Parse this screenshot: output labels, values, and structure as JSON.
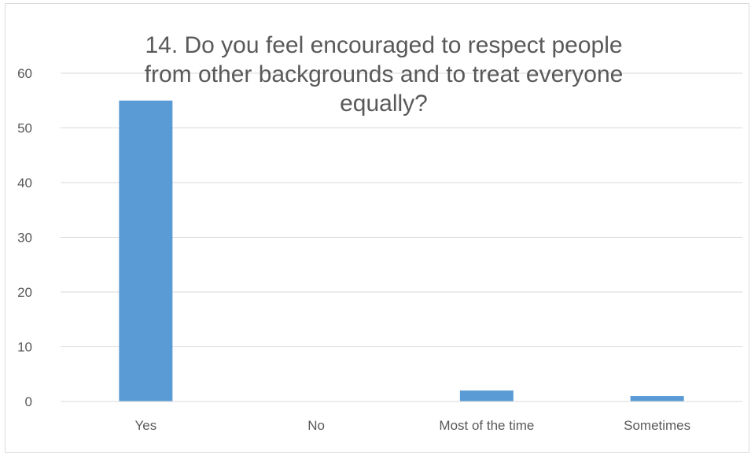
{
  "chart_data": {
    "type": "bar",
    "title_lines": [
      "14. Do you feel encouraged to respect people",
      "from other backgrounds and to treat everyone",
      "equally?"
    ],
    "categories": [
      "Yes",
      "No",
      "Most of the time",
      "Sometimes"
    ],
    "values": [
      55,
      0,
      2,
      1
    ],
    "yticks": [
      0,
      10,
      20,
      30,
      40,
      50,
      60
    ],
    "ylim": [
      0,
      60
    ],
    "grid": true,
    "bar_color": "#5b9bd5",
    "grid_color": "#d9d9d9",
    "text_color": "#595959"
  }
}
